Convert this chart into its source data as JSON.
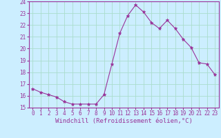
{
  "x": [
    0,
    1,
    2,
    3,
    4,
    5,
    6,
    7,
    8,
    9,
    10,
    11,
    12,
    13,
    14,
    15,
    16,
    17,
    18,
    19,
    20,
    21,
    22,
    23
  ],
  "y": [
    16.6,
    16.3,
    16.1,
    15.9,
    15.5,
    15.3,
    15.3,
    15.3,
    15.3,
    16.1,
    18.7,
    21.3,
    22.8,
    23.7,
    23.1,
    22.2,
    21.7,
    22.4,
    21.7,
    20.8,
    20.1,
    18.8,
    18.7,
    17.8
  ],
  "line_color": "#993399",
  "marker": "*",
  "marker_size": 3.5,
  "background_color": "#cceeff",
  "grid_color": "#aaddcc",
  "xlabel": "Windchill (Refroidissement éolien,°C)",
  "xlabel_color": "#993399",
  "tick_color": "#993399",
  "spine_color": "#993399",
  "ylim": [
    15,
    24
  ],
  "xlim": [
    -0.5,
    23.5
  ],
  "yticks": [
    15,
    16,
    17,
    18,
    19,
    20,
    21,
    22,
    23,
    24
  ],
  "xticks": [
    0,
    1,
    2,
    3,
    4,
    5,
    6,
    7,
    8,
    9,
    10,
    11,
    12,
    13,
    14,
    15,
    16,
    17,
    18,
    19,
    20,
    21,
    22,
    23
  ],
  "tick_fontsize": 5.5,
  "xlabel_fontsize": 6.5
}
